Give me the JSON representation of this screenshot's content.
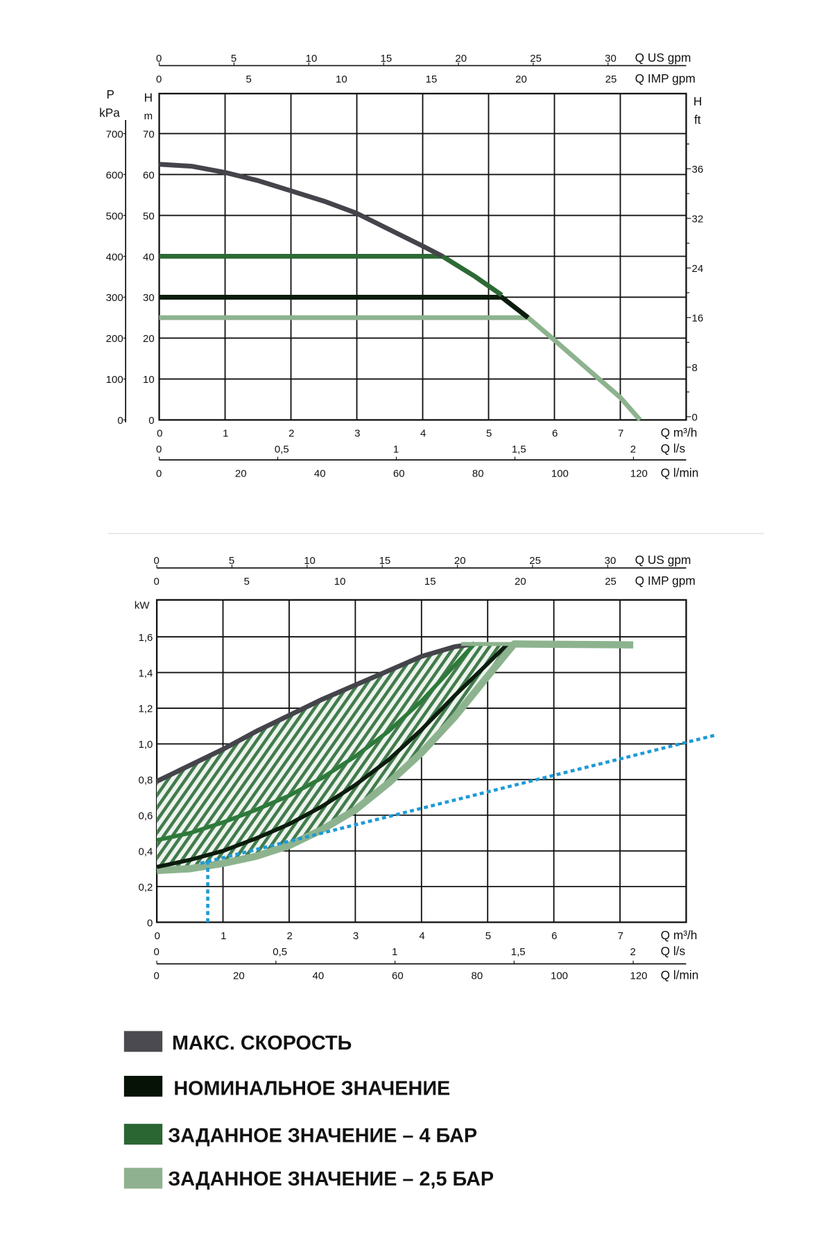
{
  "chart_data": [
    {
      "type": "line",
      "xlabel": "Q m³/h",
      "ylabel_left_outer": [
        "P",
        "kPa"
      ],
      "ylabel_left": [
        "H",
        "m"
      ],
      "ylabel_right": [
        "H",
        "ft"
      ],
      "xlim": [
        0,
        8
      ],
      "ylim": [
        0,
        80
      ],
      "grid": true,
      "x_ticks": [
        0,
        1,
        2,
        3,
        4,
        5,
        6,
        7
      ],
      "y_ticks": [
        0,
        10,
        20,
        30,
        40,
        50,
        60,
        70
      ],
      "kpa_ticks": [
        0,
        100,
        200,
        300,
        400,
        500,
        600,
        700
      ],
      "ft_ticks": [
        "0",
        "8",
        "16",
        "24",
        "32",
        "36"
      ],
      "secondary_x_axes": [
        {
          "label": "Q US gpm",
          "ticks": [
            "0",
            "5",
            "10",
            "15",
            "20",
            "25",
            "30"
          ],
          "per_m3h": 4.403
        },
        {
          "label": "Q IMP gpm",
          "ticks": [
            "0",
            "5",
            "10",
            "15",
            "20",
            "25"
          ],
          "per_m3h": 3.666
        },
        {
          "label": "Q l/s",
          "ticks": [
            "0",
            "0,5",
            "1",
            "1,5",
            "2"
          ],
          "per_m3h": 0.2778
        },
        {
          "label": "Q l/min",
          "ticks": [
            "0",
            "20",
            "40",
            "60",
            "80",
            "100",
            "120"
          ],
          "per_m3h": 16.667
        }
      ],
      "series": [
        {
          "key": "max",
          "color": "#44444b",
          "points": [
            [
              0,
              62.5
            ],
            [
              0.5,
              62
            ],
            [
              1,
              60.5
            ],
            [
              1.5,
              58.5
            ],
            [
              2,
              56
            ],
            [
              2.5,
              53.5
            ],
            [
              3,
              50.5
            ],
            [
              3.5,
              46.5
            ],
            [
              4,
              42.5
            ],
            [
              4.3,
              40
            ]
          ]
        },
        {
          "key": "sp4",
          "color": "#2d6a35",
          "points": [
            [
              0,
              40
            ],
            [
              4.3,
              40
            ],
            [
              4.8,
              35
            ],
            [
              5.2,
              30.5
            ]
          ]
        },
        {
          "key": "nominal",
          "color": "#0b1c0d",
          "points": [
            [
              0,
              30
            ],
            [
              5.2,
              30
            ],
            [
              5.6,
              25
            ]
          ]
        },
        {
          "key": "sp25",
          "color": "#8db38e",
          "points": [
            [
              0,
              25
            ],
            [
              5.6,
              25
            ],
            [
              6,
              19.5
            ],
            [
              6.5,
              12.5
            ],
            [
              7,
              5.5
            ],
            [
              7.3,
              0
            ]
          ]
        }
      ]
    },
    {
      "type": "line",
      "xlabel": "Q m³/h",
      "ylabel": "kW",
      "xlim": [
        0,
        8
      ],
      "ylim": [
        0,
        1.8
      ],
      "grid": true,
      "x_ticks": [
        0,
        1,
        2,
        3,
        4,
        5,
        6,
        7
      ],
      "y_ticks": [
        "0",
        "0,2",
        "0,4",
        "0,6",
        "0,8",
        "1,0",
        "1,2",
        "1,4",
        "1,6"
      ],
      "secondary_x_axes": [
        {
          "label": "Q US gpm",
          "ticks": [
            "0",
            "5",
            "10",
            "15",
            "20",
            "25",
            "30"
          ],
          "per_m3h": 4.403
        },
        {
          "label": "Q IMP gpm",
          "ticks": [
            "0",
            "5",
            "10",
            "15",
            "20",
            "25"
          ],
          "per_m3h": 3.666
        },
        {
          "label": "Q l/s",
          "ticks": [
            "0",
            "0,5",
            "1",
            "1,5",
            "2"
          ],
          "per_m3h": 0.2778
        },
        {
          "label": "Q l/min",
          "ticks": [
            "0",
            "20",
            "40",
            "60",
            "80",
            "100",
            "120"
          ],
          "per_m3h": 16.667
        }
      ],
      "series": [
        {
          "key": "sp25",
          "color": "#8db38e",
          "points": [
            [
              0,
              0.29
            ],
            [
              0.5,
              0.3
            ],
            [
              1,
              0.33
            ],
            [
              1.5,
              0.37
            ],
            [
              2,
              0.43
            ],
            [
              2.5,
              0.52
            ],
            [
              3,
              0.63
            ],
            [
              3.5,
              0.78
            ],
            [
              4,
              0.95
            ],
            [
              4.5,
              1.15
            ],
            [
              5,
              1.38
            ],
            [
              5.4,
              1.56
            ],
            [
              7.2,
              1.555
            ]
          ]
        },
        {
          "key": "max",
          "color": "#44444b",
          "points": [
            [
              0,
              0.79
            ],
            [
              0.5,
              0.88
            ],
            [
              1,
              0.97
            ],
            [
              1.5,
              1.07
            ],
            [
              2,
              1.16
            ],
            [
              2.5,
              1.25
            ],
            [
              3,
              1.33
            ],
            [
              3.5,
              1.41
            ],
            [
              4,
              1.49
            ],
            [
              4.5,
              1.545
            ],
            [
              4.8,
              1.56
            ]
          ]
        },
        {
          "key": "sp4",
          "color": "#2d7a3a",
          "points": [
            [
              0,
              0.46
            ],
            [
              0.5,
              0.5
            ],
            [
              1,
              0.56
            ],
            [
              1.5,
              0.63
            ],
            [
              2,
              0.71
            ],
            [
              2.5,
              0.81
            ],
            [
              3,
              0.93
            ],
            [
              3.5,
              1.07
            ],
            [
              4,
              1.24
            ],
            [
              4.4,
              1.4
            ],
            [
              4.8,
              1.56
            ]
          ]
        },
        {
          "key": "nominal",
          "color": "#0b1c0d",
          "points": [
            [
              0,
              0.31
            ],
            [
              0.5,
              0.35
            ],
            [
              1,
              0.4
            ],
            [
              1.5,
              0.47
            ],
            [
              2,
              0.55
            ],
            [
              2.5,
              0.65
            ],
            [
              3,
              0.77
            ],
            [
              3.5,
              0.91
            ],
            [
              4,
              1.08
            ],
            [
              4.5,
              1.27
            ],
            [
              5,
              1.45
            ],
            [
              5.3,
              1.56
            ]
          ]
        },
        {
          "key": "system",
          "color": "#1e9ad6",
          "style": "dotted",
          "points": [
            [
              0.77,
              0
            ],
            [
              0.77,
              0.36
            ]
          ],
          "line": [
            [
              0.66,
              0.33
            ],
            [
              8.45,
              1.05
            ]
          ]
        }
      ]
    }
  ],
  "legend": [
    {
      "label": "МАКС. СКОРОСТЬ",
      "color": "#4a4a50"
    },
    {
      "label": "НОМИНАЛЬНОЕ ЗНАЧЕНИЕ",
      "color": "#061206"
    },
    {
      "label": "ЗАДАННОЕ ЗНАЧЕНИЕ – 4 БАР",
      "color": "#2a6632"
    },
    {
      "label": "ЗАДАННОЕ ЗНАЧЕНИЕ – 2,5 БАР",
      "color": "#8fb18f"
    }
  ]
}
